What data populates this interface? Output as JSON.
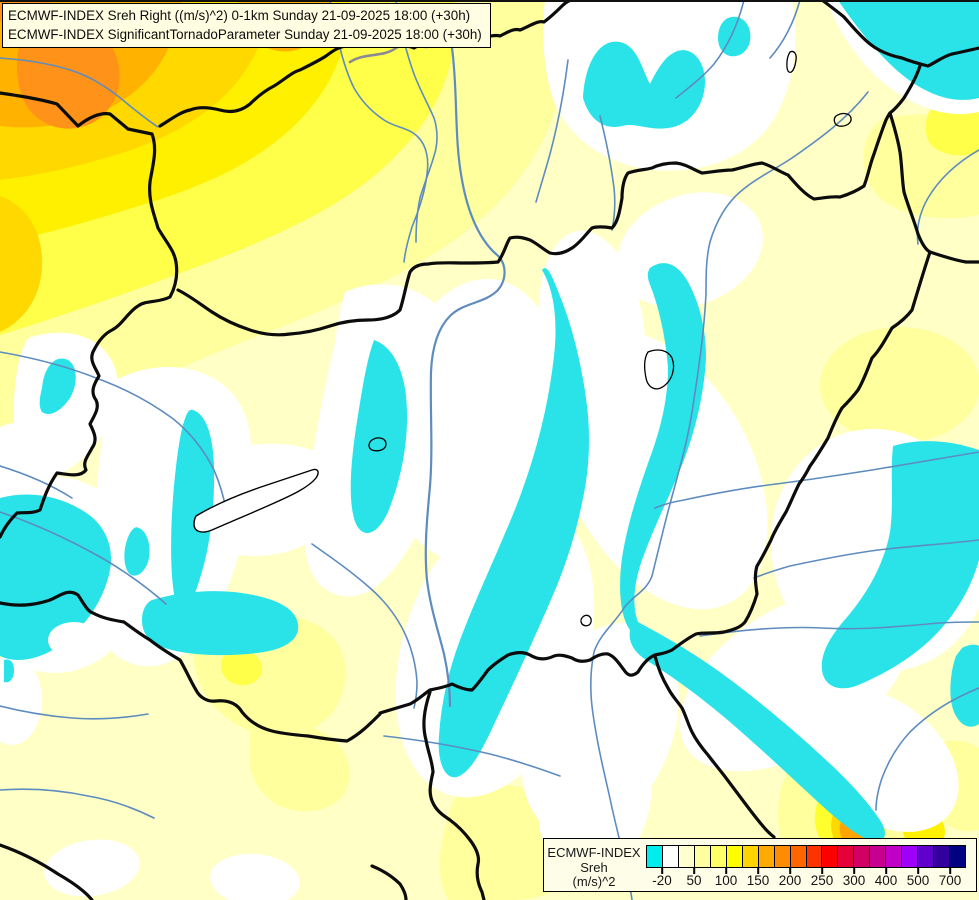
{
  "title_box": {
    "line1": "ECMWF-INDEX Sreh Right ((m/s)^2) 0-1km Sunday 21-09-2025 18:00 (+30h)",
    "line2": "ECMWF-INDEX SignificantTornadoParameter Sunday 21-09-2025 18:00 (+30h)"
  },
  "legend": {
    "title": "ECMWF-INDEX",
    "parameter": "Sreh",
    "units": "(m/s)^2",
    "scale_colors": [
      "#00EDED",
      "#FFFFFF",
      "#FFFFD0",
      "#FFFFA0",
      "#FFFF66",
      "#FFFF00",
      "#FFD400",
      "#FFAA00",
      "#FF8C00",
      "#FF6600",
      "#FF3300",
      "#FF0000",
      "#E60039",
      "#D10062",
      "#C7008F",
      "#C100C6",
      "#9E00FA",
      "#6100CC",
      "#33009E",
      "#000080"
    ],
    "ticks": [
      {
        "label": "-20",
        "pos": 5
      },
      {
        "label": "50",
        "pos": 15
      },
      {
        "label": "100",
        "pos": 25
      },
      {
        "label": "150",
        "pos": 35
      },
      {
        "label": "200",
        "pos": 45
      },
      {
        "label": "250",
        "pos": 55
      },
      {
        "label": "300",
        "pos": 65
      },
      {
        "label": "400",
        "pos": 75
      },
      {
        "label": "500",
        "pos": 85
      },
      {
        "label": "700",
        "pos": 95
      }
    ]
  },
  "map_colors": {
    "background": "#FFFFC6",
    "pale_yellow": "#FFFF9E",
    "yellow": "#FFFF4A",
    "bright_yellow": "#FFF000",
    "gold": "#FFD800",
    "amber": "#FFB200",
    "orange_core": "#FF9319",
    "negative_cyan": "#29E3E9",
    "near_zero_white": "#FFFFFF",
    "river_blue": "#5E8CBE",
    "border_black": "#0C0C0C"
  }
}
